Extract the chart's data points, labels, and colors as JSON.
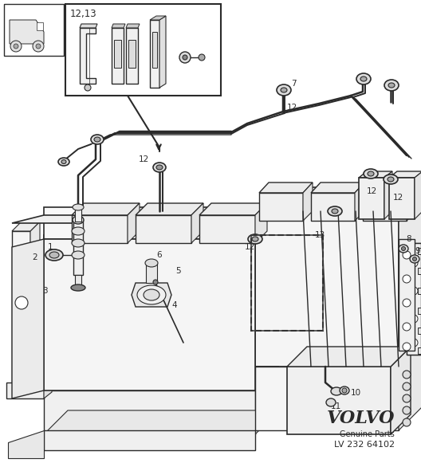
{
  "bg_color": "#ffffff",
  "line_color": "#2a2a2a",
  "fig_width": 5.28,
  "fig_height": 5.81,
  "dpi": 100,
  "volvo_text": "VOLVO",
  "volvo_sub1": "Genuine Parts",
  "volvo_sub2": "LV 232 64102"
}
